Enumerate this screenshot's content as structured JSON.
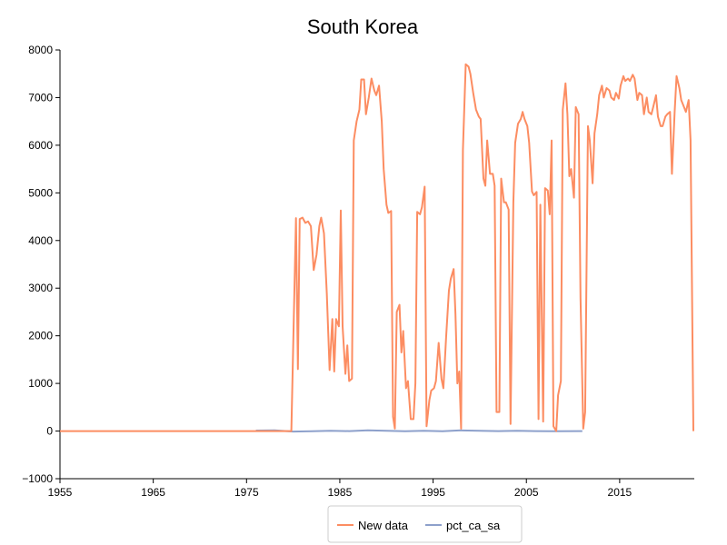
{
  "chart_data": {
    "type": "line",
    "title": "South Korea",
    "xlabel": "",
    "ylabel": "",
    "xlim": [
      1955,
      2023
    ],
    "ylim": [
      -1000,
      8000
    ],
    "x_ticks": [
      "1955",
      "1965",
      "1975",
      "1985",
      "1995",
      "2005",
      "2015"
    ],
    "y_ticks": [
      "−1000",
      "0",
      "1000",
      "2000",
      "3000",
      "4000",
      "5000",
      "6000",
      "7000",
      "8000"
    ],
    "grid": false,
    "legend_position": "bottom-center",
    "series": [
      {
        "name": "New data",
        "color": "#fc8d62",
        "points": [
          [
            1955,
            0
          ],
          [
            1979.8,
            0
          ],
          [
            1980.3,
            4470
          ],
          [
            1980.5,
            1300
          ],
          [
            1980.7,
            4450
          ],
          [
            1981.0,
            4480
          ],
          [
            1981.3,
            4370
          ],
          [
            1981.6,
            4400
          ],
          [
            1981.9,
            4300
          ],
          [
            1982.2,
            3380
          ],
          [
            1982.5,
            3700
          ],
          [
            1982.8,
            4300
          ],
          [
            1983.0,
            4480
          ],
          [
            1983.3,
            4150
          ],
          [
            1983.6,
            2900
          ],
          [
            1983.9,
            1280
          ],
          [
            1984.2,
            2350
          ],
          [
            1984.4,
            1250
          ],
          [
            1984.6,
            2350
          ],
          [
            1984.9,
            2200
          ],
          [
            1985.1,
            4630
          ],
          [
            1985.3,
            2200
          ],
          [
            1985.6,
            1200
          ],
          [
            1985.8,
            1800
          ],
          [
            1986.0,
            1050
          ],
          [
            1986.3,
            1100
          ],
          [
            1986.5,
            6100
          ],
          [
            1986.8,
            6500
          ],
          [
            1987.1,
            6750
          ],
          [
            1987.3,
            7380
          ],
          [
            1987.6,
            7380
          ],
          [
            1987.8,
            6650
          ],
          [
            1988.1,
            7000
          ],
          [
            1988.4,
            7400
          ],
          [
            1988.7,
            7150
          ],
          [
            1988.9,
            7050
          ],
          [
            1989.2,
            7250
          ],
          [
            1989.5,
            6500
          ],
          [
            1989.7,
            5500
          ],
          [
            1990.0,
            4750
          ],
          [
            1990.2,
            4580
          ],
          [
            1990.5,
            4620
          ],
          [
            1990.7,
            300
          ],
          [
            1990.9,
            50
          ],
          [
            1991.1,
            2500
          ],
          [
            1991.4,
            2650
          ],
          [
            1991.6,
            1650
          ],
          [
            1991.8,
            2100
          ],
          [
            1992.1,
            900
          ],
          [
            1992.3,
            1050
          ],
          [
            1992.6,
            250
          ],
          [
            1992.9,
            250
          ],
          [
            1993.1,
            1000
          ],
          [
            1993.3,
            4600
          ],
          [
            1993.6,
            4550
          ],
          [
            1993.8,
            4700
          ],
          [
            1994.1,
            5130
          ],
          [
            1994.3,
            100
          ],
          [
            1994.6,
            650
          ],
          [
            1994.8,
            850
          ],
          [
            1995.1,
            900
          ],
          [
            1995.3,
            1050
          ],
          [
            1995.6,
            1850
          ],
          [
            1995.9,
            1100
          ],
          [
            1996.1,
            900
          ],
          [
            1996.4,
            2000
          ],
          [
            1996.7,
            2950
          ],
          [
            1996.9,
            3200
          ],
          [
            1997.2,
            3400
          ],
          [
            1997.4,
            2450
          ],
          [
            1997.6,
            1000
          ],
          [
            1997.8,
            1250
          ],
          [
            1998.0,
            50
          ],
          [
            1998.2,
            5900
          ],
          [
            1998.5,
            7700
          ],
          [
            1998.8,
            7650
          ],
          [
            1999.0,
            7500
          ],
          [
            1999.3,
            7100
          ],
          [
            1999.6,
            6750
          ],
          [
            1999.9,
            6600
          ],
          [
            2000.1,
            6550
          ],
          [
            2000.4,
            5300
          ],
          [
            2000.6,
            5150
          ],
          [
            2000.8,
            6100
          ],
          [
            2001.1,
            5400
          ],
          [
            2001.4,
            5400
          ],
          [
            2001.6,
            5150
          ],
          [
            2001.8,
            400
          ],
          [
            2002.1,
            400
          ],
          [
            2002.3,
            5300
          ],
          [
            2002.6,
            4800
          ],
          [
            2002.8,
            4800
          ],
          [
            2003.1,
            4650
          ],
          [
            2003.3,
            150
          ],
          [
            2003.6,
            4800
          ],
          [
            2003.8,
            6050
          ],
          [
            2004.1,
            6450
          ],
          [
            2004.4,
            6550
          ],
          [
            2004.6,
            6700
          ],
          [
            2004.8,
            6550
          ],
          [
            2005.1,
            6400
          ],
          [
            2005.3,
            6050
          ],
          [
            2005.6,
            5030
          ],
          [
            2005.8,
            4950
          ],
          [
            2006.1,
            5020
          ],
          [
            2006.3,
            250
          ],
          [
            2006.5,
            4750
          ],
          [
            2006.8,
            200
          ],
          [
            2007.0,
            5100
          ],
          [
            2007.3,
            5050
          ],
          [
            2007.5,
            4550
          ],
          [
            2007.7,
            6100
          ],
          [
            2007.9,
            100
          ],
          [
            2008.2,
            0
          ],
          [
            2008.4,
            750
          ],
          [
            2008.7,
            1050
          ],
          [
            2008.9,
            6750
          ],
          [
            2009.2,
            7300
          ],
          [
            2009.4,
            6650
          ],
          [
            2009.6,
            5350
          ],
          [
            2009.8,
            5500
          ],
          [
            2010.1,
            4900
          ],
          [
            2010.3,
            6800
          ],
          [
            2010.6,
            6650
          ],
          [
            2010.8,
            2800
          ],
          [
            2011.1,
            50
          ],
          [
            2011.3,
            400
          ],
          [
            2011.6,
            6400
          ],
          [
            2011.8,
            6100
          ],
          [
            2012.1,
            5200
          ],
          [
            2012.3,
            6250
          ],
          [
            2012.6,
            6650
          ],
          [
            2012.8,
            7050
          ],
          [
            2013.1,
            7250
          ],
          [
            2013.3,
            7000
          ],
          [
            2013.6,
            7200
          ],
          [
            2013.9,
            7150
          ],
          [
            2014.1,
            7000
          ],
          [
            2014.4,
            6950
          ],
          [
            2014.6,
            7100
          ],
          [
            2014.9,
            6980
          ],
          [
            2015.1,
            7250
          ],
          [
            2015.4,
            7450
          ],
          [
            2015.6,
            7350
          ],
          [
            2015.9,
            7400
          ],
          [
            2016.1,
            7350
          ],
          [
            2016.4,
            7480
          ],
          [
            2016.6,
            7400
          ],
          [
            2016.9,
            6950
          ],
          [
            2017.1,
            7100
          ],
          [
            2017.4,
            7050
          ],
          [
            2017.6,
            6650
          ],
          [
            2017.9,
            7000
          ],
          [
            2018.1,
            6700
          ],
          [
            2018.4,
            6650
          ],
          [
            2018.6,
            6800
          ],
          [
            2018.9,
            7050
          ],
          [
            2019.1,
            6600
          ],
          [
            2019.4,
            6400
          ],
          [
            2019.6,
            6400
          ],
          [
            2019.9,
            6600
          ],
          [
            2020.1,
            6650
          ],
          [
            2020.4,
            6700
          ],
          [
            2020.6,
            5400
          ],
          [
            2020.9,
            6700
          ],
          [
            2021.1,
            7450
          ],
          [
            2021.4,
            7200
          ],
          [
            2021.6,
            6950
          ],
          [
            2021.9,
            6800
          ],
          [
            2022.1,
            6700
          ],
          [
            2022.4,
            6950
          ],
          [
            2022.6,
            6100
          ],
          [
            2022.9,
            0
          ]
        ]
      },
      {
        "name": "pct_ca_sa",
        "color": "#8da0cb",
        "points": [
          [
            1976.0,
            10
          ],
          [
            1978.0,
            15
          ],
          [
            1980.0,
            -10
          ],
          [
            1982.0,
            -5
          ],
          [
            1984.0,
            5
          ],
          [
            1986.0,
            0
          ],
          [
            1988.0,
            15
          ],
          [
            1990.0,
            5
          ],
          [
            1992.0,
            -5
          ],
          [
            1994.0,
            5
          ],
          [
            1996.0,
            -5
          ],
          [
            1998.0,
            15
          ],
          [
            2000.0,
            5
          ],
          [
            2002.0,
            0
          ],
          [
            2004.0,
            5
          ],
          [
            2006.0,
            0
          ],
          [
            2008.0,
            -5
          ],
          [
            2011.0,
            0
          ]
        ]
      }
    ]
  }
}
